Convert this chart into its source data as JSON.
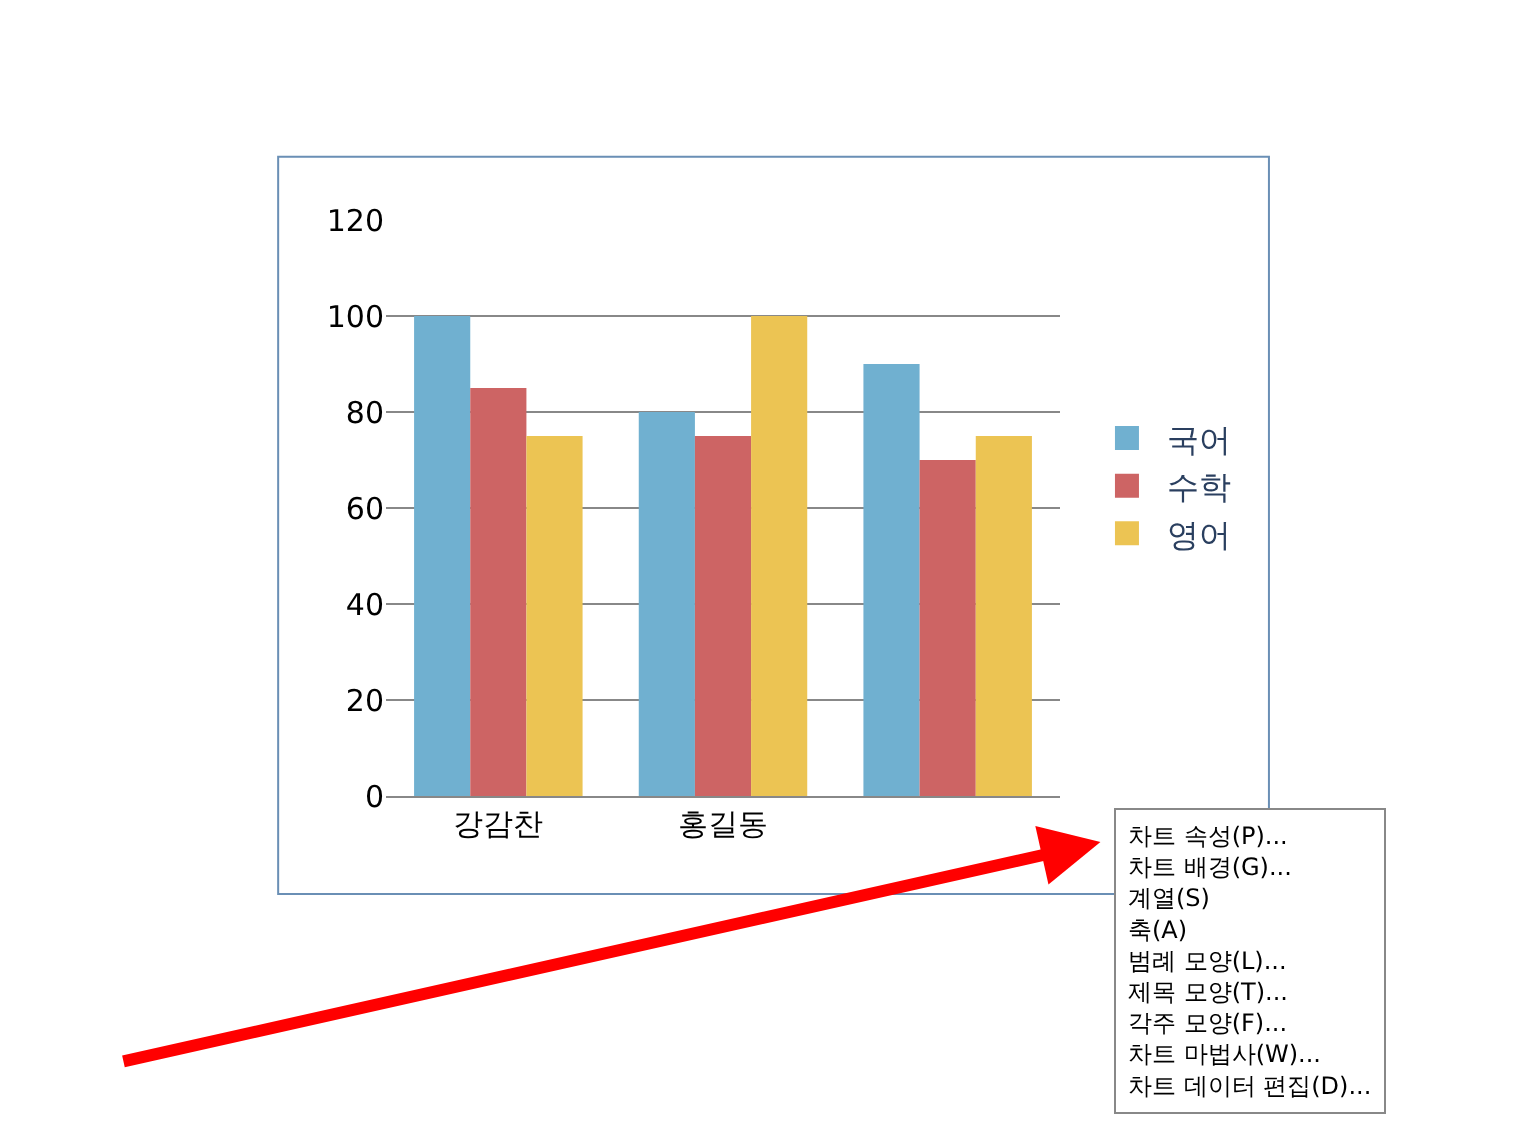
{
  "chart_data": {
    "type": "bar",
    "categories": [
      "강감찬",
      "홍길동",
      null
    ],
    "series": [
      {
        "name": "국어",
        "color": "#70b0d0",
        "values": [
          100,
          80,
          90
        ]
      },
      {
        "name": "수학",
        "color": "#cd6464",
        "values": [
          85,
          75,
          70
        ]
      },
      {
        "name": "영어",
        "color": "#ecc453",
        "values": [
          75,
          100,
          75
        ]
      }
    ],
    "ylim": [
      0,
      120
    ],
    "yticks": [
      0,
      20,
      40,
      60,
      80,
      100,
      120
    ],
    "grid": "y",
    "legend": "right",
    "annotations": [
      "차트 속성(P)...",
      "차트 배경(G)...",
      "계열(S)",
      "축(A)",
      "범례 모양(L)...",
      "제목 모양(T)...",
      "각주 모양(F)...",
      "차트 마법사(W)...",
      "차트 데이터 편집(D)..."
    ]
  }
}
